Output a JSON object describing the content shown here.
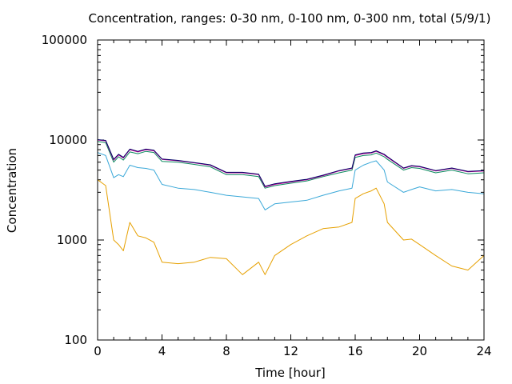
{
  "chart_data": {
    "type": "line",
    "title": "Concentration, ranges: 0-30 nm, 0-100 nm, 0-300 nm, total (5/9/1)",
    "xlabel": "Time [hour]",
    "ylabel": "Concentration",
    "xlim": [
      0,
      24
    ],
    "ylim": [
      100,
      100000
    ],
    "yscale": "log",
    "grid": false,
    "x_ticks": [
      "0",
      "4",
      "8",
      "12",
      "16",
      "20",
      "24"
    ],
    "y_ticks": [
      "100",
      "1000",
      "10000",
      "100000"
    ],
    "x": [
      0,
      0.5,
      1,
      1.3,
      1.6,
      2,
      2.5,
      3,
      3.5,
      4,
      5,
      6,
      7,
      8,
      9,
      10,
      10.4,
      11,
      12,
      13,
      14,
      15,
      15.8,
      16,
      16.5,
      17,
      17.3,
      17.8,
      18,
      19,
      19.5,
      20,
      21,
      22,
      23,
      24
    ],
    "series": [
      {
        "color": "#e6a000",
        "values": [
          4000,
          3500,
          1000,
          900,
          780,
          1500,
          1100,
          1050,
          950,
          600,
          580,
          600,
          670,
          650,
          450,
          600,
          450,
          700,
          900,
          1100,
          1300,
          1350,
          1500,
          2600,
          2900,
          3100,
          3300,
          2300,
          1500,
          1000,
          1020,
          900,
          700,
          550,
          500,
          700
        ]
      },
      {
        "color": "#3aa8d8",
        "values": [
          7500,
          7000,
          4200,
          4500,
          4300,
          5600,
          5300,
          5200,
          5000,
          3600,
          3300,
          3200,
          3000,
          2800,
          2700,
          2600,
          2000,
          2300,
          2400,
          2500,
          2800,
          3100,
          3300,
          5000,
          5600,
          6000,
          6200,
          5000,
          3800,
          3000,
          3200,
          3400,
          3100,
          3200,
          3000,
          2900
        ]
      },
      {
        "color": "#0a8a5e",
        "values": [
          9700,
          9400,
          6000,
          6800,
          6300,
          7600,
          7300,
          7700,
          7500,
          6100,
          6000,
          5700,
          5400,
          4500,
          4500,
          4300,
          3300,
          3500,
          3700,
          3900,
          4300,
          4700,
          5000,
          6700,
          7000,
          7100,
          7400,
          6800,
          6400,
          5000,
          5300,
          5200,
          4700,
          5000,
          4600,
          4700
        ]
      },
      {
        "color": "#cc0099",
        "values": [
          10000,
          9800,
          6300,
          7100,
          6600,
          8000,
          7600,
          8000,
          7800,
          6400,
          6200,
          5900,
          5600,
          4700,
          4700,
          4500,
          3400,
          3600,
          3800,
          4000,
          4400,
          4900,
          5200,
          7000,
          7300,
          7400,
          7700,
          7100,
          6700,
          5200,
          5500,
          5400,
          4900,
          5200,
          4800,
          4900
        ]
      },
      {
        "color": "#000066",
        "values": [
          10100,
          9900,
          6400,
          7200,
          6700,
          8100,
          7700,
          8100,
          7900,
          6450,
          6250,
          5950,
          5650,
          4750,
          4750,
          4550,
          3450,
          3650,
          3850,
          4050,
          4450,
          4950,
          5250,
          7100,
          7400,
          7500,
          7800,
          7200,
          6800,
          5250,
          5550,
          5450,
          4950,
          5250,
          4850,
          4950
        ]
      }
    ]
  }
}
